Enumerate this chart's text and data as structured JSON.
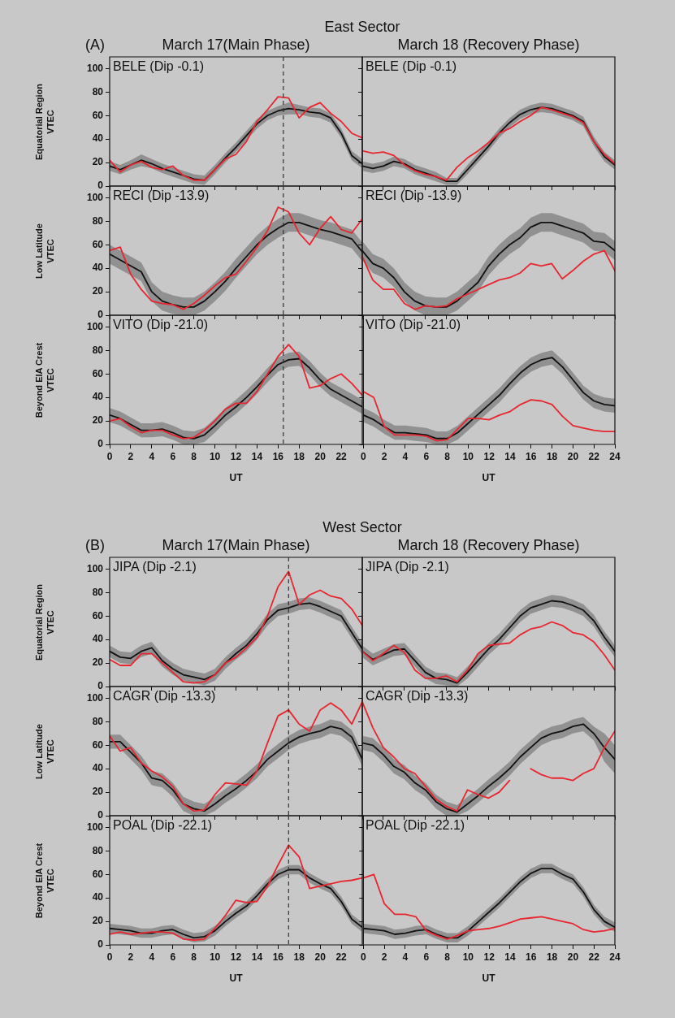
{
  "chart_data": [
    {
      "type": "line",
      "title": "BELE (Dip -0.1)",
      "subtitle": "March 17(Main Phase)",
      "ylabel": "Equatorial Region\nVTEC",
      "annotations": [
        "(A)",
        "East Sector"
      ],
      "tick_labels": "y",
      "legend": false,
      "grid": false,
      "marker": "none",
      "xlim": [
        0,
        24
      ],
      "xticks": [
        0,
        2,
        4,
        6,
        8,
        10,
        12,
        14,
        16,
        18,
        20,
        22
      ],
      "ylim": [
        0,
        110
      ],
      "yticks": [
        0,
        20,
        40,
        60,
        80,
        100
      ],
      "ref_lines": [
        {
          "axis": "x",
          "value": 16.5,
          "color": "#333333",
          "line_style": "dashed"
        }
      ],
      "x": [
        0,
        1,
        2,
        3,
        4,
        5,
        6,
        7,
        8,
        9,
        10,
        11,
        12,
        13,
        14,
        15,
        16,
        17,
        18,
        19,
        20,
        21,
        22,
        23,
        24
      ],
      "series": [
        {
          "color": "#111111",
          "values": [
            17,
            14,
            18,
            22,
            19,
            15,
            12,
            9,
            6,
            5,
            14,
            24,
            33,
            43,
            53,
            60,
            64,
            66,
            65,
            63,
            62,
            58,
            45,
            26,
            19
          ],
          "lower": [
            13,
            10,
            14,
            17,
            15,
            11,
            8,
            5,
            2,
            1,
            10,
            20,
            29,
            39,
            49,
            56,
            60,
            61,
            61,
            59,
            58,
            54,
            41,
            22,
            15
          ],
          "upper": [
            21,
            18,
            22,
            27,
            23,
            19,
            16,
            13,
            10,
            9,
            18,
            28,
            37,
            47,
            57,
            64,
            68,
            71,
            69,
            67,
            66,
            62,
            49,
            30,
            23
          ]
        },
        {
          "color": "#e8262f",
          "values": [
            22,
            12,
            18,
            21,
            16,
            14,
            17,
            9,
            5,
            5,
            14,
            23,
            27,
            38,
            55,
            65,
            76,
            75,
            58,
            67,
            71,
            62,
            55,
            45,
            41
          ]
        }
      ]
    },
    {
      "type": "line",
      "title": "BELE (Dip -0.1)",
      "subtitle": "March 18 (Recovery Phase)",
      "tick_labels": false,
      "legend": false,
      "grid": false,
      "marker": "none",
      "xlim": [
        0,
        24
      ],
      "xticks": [
        0,
        2,
        4,
        6,
        8,
        10,
        12,
        14,
        16,
        18,
        20,
        22,
        24
      ],
      "ylim": [
        0,
        110
      ],
      "yticks": [
        0,
        20,
        40,
        60,
        80,
        100
      ],
      "x": [
        0,
        1,
        2,
        3,
        4,
        5,
        6,
        7,
        8,
        9,
        10,
        11,
        12,
        13,
        14,
        15,
        16,
        17,
        18,
        19,
        20,
        21,
        22,
        23,
        24
      ],
      "series": [
        {
          "color": "#111111",
          "values": [
            17,
            15,
            17,
            21,
            19,
            14,
            11,
            8,
            4,
            4,
            14,
            24,
            34,
            45,
            54,
            61,
            65,
            67,
            66,
            63,
            60,
            55,
            38,
            25,
            18
          ],
          "lower": [
            13,
            11,
            13,
            17,
            15,
            10,
            7,
            4,
            1,
            1,
            10,
            20,
            30,
            41,
            50,
            57,
            61,
            63,
            62,
            59,
            56,
            51,
            34,
            21,
            14
          ],
          "upper": [
            21,
            19,
            21,
            25,
            23,
            18,
            15,
            12,
            7,
            7,
            18,
            28,
            38,
            49,
            58,
            65,
            69,
            71,
            70,
            67,
            64,
            59,
            42,
            29,
            22
          ]
        },
        {
          "color": "#e8262f",
          "values": [
            30,
            28,
            29,
            26,
            18,
            13,
            10,
            8,
            5,
            16,
            24,
            30,
            37,
            45,
            49,
            55,
            60,
            67,
            65,
            62,
            59,
            54,
            38,
            27,
            19
          ]
        }
      ]
    },
    {
      "type": "line",
      "title": "RECI (Dip -13.9)",
      "ylabel": "Low Latitude\nVTEC",
      "tick_labels": "y",
      "legend": false,
      "grid": false,
      "marker": "none",
      "xlim": [
        0,
        24
      ],
      "xticks": [
        0,
        2,
        4,
        6,
        8,
        10,
        12,
        14,
        16,
        18,
        20,
        22
      ],
      "ylim": [
        0,
        110
      ],
      "yticks": [
        0,
        20,
        40,
        60,
        80,
        100
      ],
      "ref_lines": [
        {
          "axis": "x",
          "value": 16.5,
          "color": "#333333",
          "line_style": "dashed"
        }
      ],
      "x": [
        0,
        1,
        2,
        3,
        4,
        5,
        6,
        7,
        8,
        9,
        10,
        11,
        12,
        13,
        14,
        15,
        16,
        17,
        18,
        19,
        20,
        21,
        22,
        23,
        24
      ],
      "series": [
        {
          "color": "#111111",
          "values": [
            52,
            47,
            42,
            37,
            20,
            12,
            9,
            7,
            7,
            12,
            20,
            29,
            40,
            50,
            60,
            68,
            74,
            79,
            79,
            76,
            73,
            71,
            68,
            65,
            54
          ],
          "lower": [
            44,
            39,
            34,
            29,
            12,
            4,
            1,
            0,
            0,
            4,
            12,
            21,
            32,
            42,
            52,
            60,
            66,
            71,
            71,
            68,
            65,
            63,
            60,
            57,
            46
          ],
          "upper": [
            60,
            55,
            50,
            45,
            28,
            20,
            17,
            15,
            15,
            20,
            28,
            37,
            48,
            58,
            68,
            76,
            82,
            87,
            87,
            84,
            81,
            79,
            76,
            73,
            62
          ]
        },
        {
          "color": "#e8262f",
          "values": [
            55,
            58,
            35,
            22,
            12,
            10,
            9,
            5,
            10,
            17,
            25,
            32,
            35,
            46,
            58,
            72,
            92,
            88,
            70,
            60,
            74,
            84,
            73,
            70,
            82
          ]
        }
      ]
    },
    {
      "type": "line",
      "title": "RECI (Dip -13.9)",
      "tick_labels": false,
      "legend": false,
      "grid": false,
      "marker": "none",
      "xlim": [
        0,
        24
      ],
      "xticks": [
        0,
        2,
        4,
        6,
        8,
        10,
        12,
        14,
        16,
        18,
        20,
        22,
        24
      ],
      "ylim": [
        0,
        110
      ],
      "yticks": [
        0,
        20,
        40,
        60,
        80,
        100
      ],
      "x": [
        0,
        1,
        2,
        3,
        4,
        5,
        6,
        7,
        8,
        9,
        10,
        11,
        12,
        13,
        14,
        15,
        16,
        17,
        18,
        19,
        20,
        21,
        22,
        23,
        24
      ],
      "series": [
        {
          "color": "#111111",
          "values": [
            55,
            44,
            40,
            32,
            20,
            12,
            8,
            7,
            7,
            12,
            20,
            28,
            42,
            52,
            60,
            66,
            75,
            79,
            79,
            76,
            73,
            70,
            63,
            62,
            55
          ],
          "lower": [
            47,
            36,
            32,
            24,
            12,
            4,
            0,
            0,
            0,
            4,
            12,
            20,
            34,
            44,
            52,
            58,
            67,
            71,
            71,
            68,
            65,
            62,
            55,
            54,
            47
          ],
          "upper": [
            63,
            52,
            48,
            40,
            28,
            20,
            16,
            15,
            15,
            20,
            28,
            36,
            50,
            60,
            68,
            74,
            83,
            87,
            87,
            84,
            81,
            78,
            71,
            70,
            63
          ]
        },
        {
          "color": "#e8262f",
          "values": [
            50,
            30,
            22,
            22,
            10,
            5,
            8,
            7,
            8,
            14,
            18,
            22,
            26,
            30,
            32,
            36,
            44,
            42,
            44,
            31,
            38,
            46,
            52,
            55,
            38
          ]
        }
      ]
    },
    {
      "type": "line",
      "title": "VITO (Dip -21.0)",
      "ylabel": "Beyond EIA Crest\nVTEC",
      "xlabel": "UT",
      "legend": false,
      "grid": false,
      "marker": "none",
      "xlim": [
        0,
        24
      ],
      "xticks": [
        0,
        2,
        4,
        6,
        8,
        10,
        12,
        14,
        16,
        18,
        20,
        22
      ],
      "ylim": [
        0,
        110
      ],
      "yticks": [
        0,
        20,
        40,
        60,
        80,
        100
      ],
      "ref_lines": [
        {
          "axis": "x",
          "value": 16.5,
          "color": "#333333",
          "line_style": "dashed"
        }
      ],
      "x": [
        0,
        1,
        2,
        3,
        4,
        5,
        6,
        7,
        8,
        9,
        10,
        11,
        12,
        13,
        14,
        15,
        16,
        17,
        18,
        19,
        20,
        21,
        22,
        23,
        24
      ],
      "series": [
        {
          "color": "#111111",
          "values": [
            25,
            22,
            17,
            12,
            12,
            13,
            10,
            6,
            5,
            8,
            16,
            25,
            32,
            40,
            49,
            59,
            68,
            72,
            73,
            65,
            55,
            47,
            42,
            37,
            32
          ],
          "lower": [
            19,
            16,
            11,
            6,
            6,
            7,
            4,
            0,
            0,
            2,
            10,
            19,
            26,
            34,
            43,
            53,
            62,
            66,
            67,
            59,
            49,
            41,
            36,
            31,
            26
          ],
          "upper": [
            31,
            28,
            23,
            18,
            18,
            19,
            16,
            12,
            11,
            14,
            22,
            31,
            38,
            46,
            55,
            65,
            74,
            78,
            79,
            71,
            61,
            53,
            48,
            43,
            38
          ]
        },
        {
          "color": "#e8262f",
          "values": [
            20,
            22,
            15,
            10,
            12,
            12,
            8,
            5,
            6,
            12,
            20,
            30,
            35,
            35,
            45,
            60,
            75,
            85,
            75,
            48,
            50,
            56,
            60,
            52,
            42
          ]
        }
      ]
    },
    {
      "type": "line",
      "title": "VITO (Dip -21.0)",
      "xlabel": "UT",
      "tick_labels": "x",
      "legend": false,
      "grid": false,
      "marker": "none",
      "xlim": [
        0,
        24
      ],
      "xticks": [
        0,
        2,
        4,
        6,
        8,
        10,
        12,
        14,
        16,
        18,
        20,
        22,
        24
      ],
      "ylim": [
        0,
        110
      ],
      "yticks": [
        0,
        20,
        40,
        60,
        80,
        100
      ],
      "x": [
        0,
        1,
        2,
        3,
        4,
        5,
        6,
        7,
        8,
        9,
        10,
        11,
        12,
        13,
        14,
        15,
        16,
        17,
        18,
        19,
        20,
        21,
        22,
        23,
        24
      ],
      "series": [
        {
          "color": "#111111",
          "values": [
            25,
            21,
            15,
            10,
            10,
            9,
            8,
            5,
            5,
            10,
            18,
            26,
            34,
            42,
            52,
            61,
            68,
            72,
            74,
            66,
            55,
            44,
            37,
            34,
            33
          ],
          "lower": [
            19,
            15,
            9,
            4,
            4,
            3,
            2,
            0,
            0,
            4,
            12,
            20,
            28,
            36,
            46,
            55,
            62,
            66,
            68,
            60,
            49,
            38,
            31,
            28,
            27
          ],
          "upper": [
            31,
            27,
            21,
            16,
            16,
            15,
            14,
            11,
            11,
            16,
            24,
            32,
            40,
            48,
            58,
            67,
            74,
            78,
            80,
            72,
            61,
            50,
            43,
            40,
            39
          ]
        },
        {
          "color": "#e8262f",
          "values": [
            45,
            40,
            15,
            8,
            8,
            8,
            7,
            3,
            4,
            13,
            22,
            22,
            21,
            25,
            28,
            34,
            38,
            37,
            34,
            24,
            16,
            14,
            12,
            11,
            11
          ]
        }
      ]
    },
    {
      "type": "line",
      "title": "JIPA (Dip -2.1)",
      "subtitle": "March 17(Main Phase)",
      "ylabel": "Equatorial Region\nVTEC",
      "annotations": [
        "(B)",
        "West Sector"
      ],
      "tick_labels": "y",
      "legend": false,
      "grid": false,
      "marker": "none",
      "xlim": [
        0,
        24
      ],
      "xticks": [
        0,
        2,
        4,
        6,
        8,
        10,
        12,
        14,
        16,
        18,
        20,
        22
      ],
      "ylim": [
        0,
        110
      ],
      "yticks": [
        0,
        20,
        40,
        60,
        80,
        100
      ],
      "ref_lines": [
        {
          "axis": "x",
          "value": 17,
          "color": "#333333",
          "line_style": "dashed"
        }
      ],
      "x": [
        0,
        1,
        2,
        3,
        4,
        5,
        6,
        7,
        8,
        9,
        10,
        11,
        12,
        13,
        14,
        15,
        16,
        17,
        18,
        19,
        20,
        21,
        22,
        23,
        24
      ],
      "series": [
        {
          "color": "#111111",
          "values": [
            30,
            25,
            24,
            30,
            33,
            22,
            15,
            10,
            8,
            6,
            10,
            20,
            28,
            35,
            45,
            57,
            65,
            67,
            70,
            71,
            68,
            64,
            60,
            46,
            32
          ],
          "lower": [
            25,
            20,
            19,
            25,
            28,
            17,
            10,
            5,
            3,
            1,
            5,
            15,
            23,
            30,
            40,
            52,
            60,
            62,
            65,
            66,
            63,
            59,
            55,
            41,
            27
          ],
          "upper": [
            35,
            30,
            29,
            35,
            38,
            27,
            20,
            15,
            13,
            11,
            15,
            25,
            33,
            40,
            50,
            62,
            70,
            72,
            75,
            76,
            73,
            69,
            65,
            51,
            37
          ]
        },
        {
          "color": "#e8262f",
          "values": [
            23,
            18,
            18,
            28,
            28,
            20,
            12,
            4,
            3,
            4,
            10,
            20,
            25,
            33,
            42,
            60,
            85,
            98,
            70,
            78,
            82,
            77,
            75,
            66,
            52
          ]
        }
      ]
    },
    {
      "type": "line",
      "title": "JIPA (Dip -2.1)",
      "subtitle": "March 18 (Recovery Phase)",
      "tick_labels": false,
      "legend": false,
      "grid": false,
      "marker": "none",
      "xlim": [
        0,
        24
      ],
      "xticks": [
        0,
        2,
        4,
        6,
        8,
        10,
        12,
        14,
        16,
        18,
        20,
        22,
        24
      ],
      "ylim": [
        0,
        110
      ],
      "yticks": [
        0,
        20,
        40,
        60,
        80,
        100
      ],
      "x": [
        0,
        1,
        2,
        3,
        4,
        5,
        6,
        7,
        8,
        9,
        10,
        11,
        12,
        13,
        14,
        15,
        16,
        17,
        18,
        19,
        20,
        21,
        22,
        23,
        24
      ],
      "series": [
        {
          "color": "#111111",
          "values": [
            30,
            23,
            27,
            31,
            32,
            22,
            12,
            7,
            6,
            3,
            12,
            22,
            32,
            40,
            50,
            60,
            67,
            70,
            73,
            72,
            69,
            65,
            56,
            42,
            30
          ],
          "lower": [
            25,
            18,
            22,
            26,
            27,
            17,
            7,
            2,
            1,
            0,
            7,
            17,
            27,
            35,
            45,
            55,
            62,
            65,
            68,
            67,
            64,
            60,
            51,
            37,
            25
          ],
          "upper": [
            35,
            28,
            32,
            36,
            37,
            27,
            17,
            12,
            11,
            8,
            17,
            27,
            37,
            45,
            55,
            65,
            72,
            75,
            78,
            77,
            74,
            70,
            61,
            47,
            35
          ]
        },
        {
          "color": "#e8262f",
          "values": [
            30,
            22,
            28,
            35,
            29,
            14,
            7,
            7,
            9,
            4,
            14,
            28,
            35,
            36,
            37,
            44,
            49,
            51,
            55,
            52,
            46,
            44,
            38,
            27,
            14
          ]
        }
      ]
    },
    {
      "type": "line",
      "title": "CAGR (Dip -13.3)",
      "ylabel": "Low Latitude\nVTEC",
      "tick_labels": "y",
      "legend": false,
      "grid": false,
      "marker": "none",
      "xlim": [
        0,
        24
      ],
      "xticks": [
        0,
        2,
        4,
        6,
        8,
        10,
        12,
        14,
        16,
        18,
        20,
        22
      ],
      "ylim": [
        0,
        110
      ],
      "yticks": [
        0,
        20,
        40,
        60,
        80,
        100
      ],
      "ref_lines": [
        {
          "axis": "x",
          "value": 17,
          "color": "#333333",
          "line_style": "dashed"
        }
      ],
      "x": [
        0,
        1,
        2,
        3,
        4,
        5,
        6,
        7,
        8,
        9,
        10,
        11,
        12,
        13,
        14,
        15,
        16,
        17,
        18,
        19,
        20,
        21,
        22,
        23,
        24
      ],
      "series": [
        {
          "color": "#111111",
          "values": [
            63,
            63,
            54,
            45,
            32,
            30,
            22,
            10,
            6,
            4,
            10,
            17,
            23,
            30,
            38,
            48,
            55,
            62,
            67,
            70,
            72,
            76,
            74,
            67,
            48
          ],
          "lower": [
            57,
            57,
            48,
            39,
            26,
            24,
            16,
            4,
            0,
            0,
            4,
            11,
            17,
            24,
            32,
            42,
            49,
            56,
            61,
            64,
            66,
            70,
            68,
            61,
            42
          ],
          "upper": [
            69,
            69,
            60,
            51,
            38,
            36,
            28,
            16,
            12,
            10,
            16,
            23,
            29,
            36,
            44,
            54,
            61,
            68,
            73,
            76,
            78,
            82,
            80,
            73,
            54
          ]
        },
        {
          "color": "#e8262f",
          "values": [
            68,
            55,
            58,
            45,
            38,
            33,
            25,
            10,
            4,
            5,
            18,
            28,
            27,
            26,
            38,
            62,
            85,
            90,
            78,
            72,
            90,
            96,
            90,
            78,
            97
          ]
        }
      ]
    },
    {
      "type": "line",
      "title": "CAGR (Dip -13.3)",
      "tick_labels": false,
      "legend": false,
      "grid": false,
      "marker": "none",
      "xlim": [
        0,
        24
      ],
      "xticks": [
        0,
        2,
        4,
        6,
        8,
        10,
        12,
        14,
        16,
        18,
        20,
        22,
        24
      ],
      "ylim": [
        0,
        110
      ],
      "yticks": [
        0,
        20,
        40,
        60,
        80,
        100
      ],
      "x": [
        0,
        1,
        2,
        3,
        4,
        5,
        6,
        7,
        8,
        9,
        10,
        11,
        12,
        13,
        14,
        15,
        16,
        17,
        18,
        19,
        20,
        21,
        22,
        23,
        24
      ],
      "series": [
        {
          "color": "#111111",
          "values": [
            62,
            60,
            52,
            42,
            37,
            28,
            22,
            12,
            6,
            3,
            10,
            17,
            25,
            32,
            40,
            50,
            58,
            66,
            70,
            72,
            76,
            78,
            70,
            58,
            48
          ],
          "lower": [
            56,
            54,
            46,
            36,
            31,
            22,
            16,
            6,
            0,
            0,
            4,
            11,
            19,
            26,
            34,
            44,
            52,
            60,
            64,
            66,
            70,
            72,
            64,
            46,
            36
          ],
          "upper": [
            68,
            66,
            58,
            48,
            43,
            34,
            28,
            18,
            12,
            9,
            16,
            23,
            31,
            38,
            46,
            56,
            64,
            72,
            76,
            78,
            82,
            84,
            76,
            70,
            60
          ]
        },
        {
          "color": "#e8262f",
          "values": [
            97,
            75,
            58,
            50,
            40,
            36,
            25,
            14,
            8,
            4,
            22,
            18,
            15,
            20,
            30,
            null,
            40,
            35,
            32,
            32,
            30,
            36,
            40,
            58,
            72
          ]
        }
      ]
    },
    {
      "type": "line",
      "title": "POAL (Dip -22.1)",
      "ylabel": "Beyond EIA Crest\nVTEC",
      "xlabel": "UT",
      "legend": false,
      "grid": false,
      "marker": "none",
      "xlim": [
        0,
        24
      ],
      "xticks": [
        0,
        2,
        4,
        6,
        8,
        10,
        12,
        14,
        16,
        18,
        20,
        22
      ],
      "ylim": [
        0,
        110
      ],
      "yticks": [
        0,
        20,
        40,
        60,
        80,
        100
      ],
      "ref_lines": [
        {
          "axis": "x",
          "value": 17,
          "color": "#333333",
          "line_style": "dashed"
        }
      ],
      "x": [
        0,
        1,
        2,
        3,
        4,
        5,
        6,
        7,
        8,
        9,
        10,
        11,
        12,
        13,
        14,
        15,
        16,
        17,
        18,
        19,
        20,
        21,
        22,
        23,
        24
      ],
      "series": [
        {
          "color": "#111111",
          "values": [
            14,
            13,
            12,
            10,
            10,
            12,
            13,
            9,
            6,
            7,
            12,
            20,
            27,
            33,
            42,
            52,
            60,
            64,
            64,
            57,
            52,
            48,
            37,
            22,
            15
          ],
          "lower": [
            10,
            9,
            8,
            6,
            6,
            8,
            9,
            5,
            2,
            3,
            8,
            16,
            23,
            29,
            38,
            48,
            56,
            60,
            60,
            53,
            48,
            44,
            33,
            18,
            11
          ],
          "upper": [
            18,
            17,
            16,
            14,
            14,
            16,
            17,
            13,
            10,
            11,
            16,
            24,
            31,
            37,
            46,
            56,
            64,
            68,
            68,
            61,
            56,
            52,
            41,
            26,
            19
          ]
        },
        {
          "color": "#e8262f",
          "values": [
            9,
            11,
            9,
            10,
            11,
            11,
            10,
            5,
            4,
            5,
            14,
            25,
            38,
            36,
            37,
            50,
            68,
            85,
            75,
            48,
            50,
            52,
            54,
            55,
            57
          ]
        }
      ]
    },
    {
      "type": "line",
      "title": "POAL (Dip -22.1)",
      "xlabel": "UT",
      "tick_labels": "x",
      "legend": false,
      "grid": false,
      "marker": "none",
      "xlim": [
        0,
        24
      ],
      "xticks": [
        0,
        2,
        4,
        6,
        8,
        10,
        12,
        14,
        16,
        18,
        20,
        22,
        24
      ],
      "ylim": [
        0,
        110
      ],
      "yticks": [
        0,
        20,
        40,
        60,
        80,
        100
      ],
      "x": [
        0,
        1,
        2,
        3,
        4,
        5,
        6,
        7,
        8,
        9,
        10,
        11,
        12,
        13,
        14,
        15,
        16,
        17,
        18,
        19,
        20,
        21,
        22,
        23,
        24
      ],
      "series": [
        {
          "color": "#111111",
          "values": [
            14,
            13,
            12,
            9,
            10,
            12,
            13,
            9,
            6,
            6,
            12,
            20,
            28,
            36,
            45,
            54,
            61,
            65,
            65,
            60,
            56,
            45,
            30,
            20,
            15
          ],
          "lower": [
            10,
            9,
            8,
            5,
            6,
            8,
            9,
            5,
            2,
            2,
            8,
            16,
            24,
            32,
            41,
            50,
            57,
            61,
            61,
            56,
            52,
            41,
            26,
            16,
            11
          ],
          "upper": [
            18,
            17,
            16,
            13,
            14,
            16,
            17,
            13,
            10,
            10,
            16,
            24,
            32,
            40,
            49,
            58,
            65,
            69,
            69,
            64,
            60,
            49,
            34,
            24,
            19
          ]
        },
        {
          "color": "#e8262f",
          "values": [
            57,
            60,
            35,
            26,
            26,
            24,
            12,
            8,
            5,
            8,
            12,
            13,
            14,
            16,
            19,
            22,
            23,
            24,
            22,
            20,
            18,
            13,
            11,
            12,
            14
          ]
        }
      ]
    }
  ]
}
